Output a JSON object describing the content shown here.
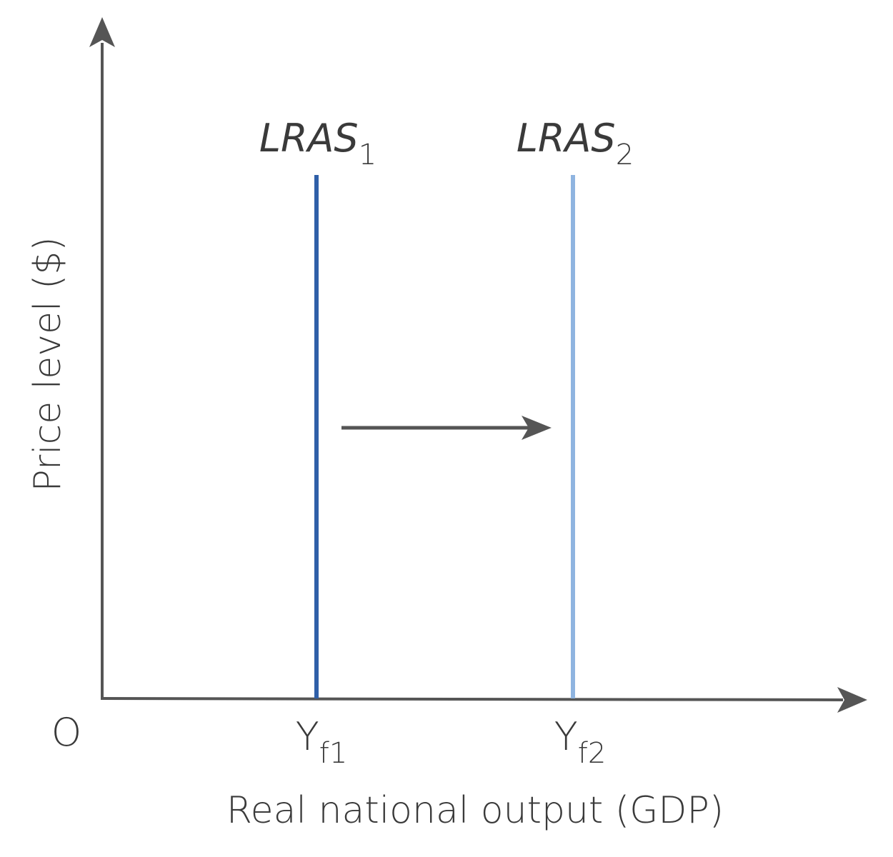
{
  "diagram": {
    "y_axis_label": "Price level ($)",
    "x_axis_label": "Real national output (GDP)",
    "origin_label": "O",
    "curves": [
      {
        "label": "LRAS",
        "subscript": "1"
      },
      {
        "label": "LRAS",
        "subscript": "2"
      }
    ],
    "x_points": [
      {
        "label": "Y",
        "subscript": "f1"
      },
      {
        "label": "Y",
        "subscript": "f2"
      }
    ]
  }
}
